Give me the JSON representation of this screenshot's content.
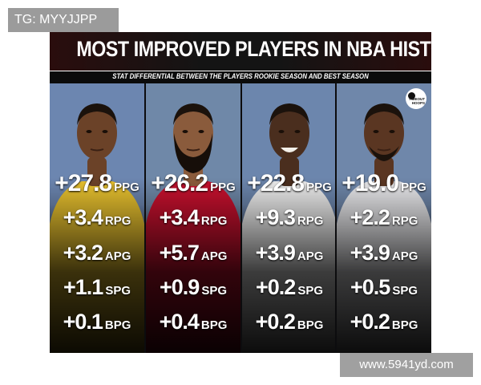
{
  "watermark_top": "TG: MYYJJPP",
  "watermark_bottom": "www.5941yd.com",
  "title": "MOST IMPROVED PLAYERS IN NBA HISTORY",
  "subtitle": "STAT DIFFERENTIAL BETWEEN THE PLAYERS ROOKIE SEASON AND BEST SEASON",
  "logo": {
    "line1": "TIMEOUT",
    "line2": "HOOPS"
  },
  "players": [
    {
      "jersey_color": "#e8c12e",
      "skin": "#6b4228",
      "bg": "#6c86b0",
      "stats": [
        {
          "value": "+27.8",
          "unit": "PPG"
        },
        {
          "value": "+3.4",
          "unit": "RPG"
        },
        {
          "value": "+3.2",
          "unit": "APG"
        },
        {
          "value": "+1.1",
          "unit": "SPG"
        },
        {
          "value": "+0.1",
          "unit": "BPG"
        }
      ]
    },
    {
      "jersey_color": "#c8102e",
      "skin": "#8a5b3c",
      "bg": "#6f88a8",
      "stats": [
        {
          "value": "+26.2",
          "unit": "PPG"
        },
        {
          "value": "+3.4",
          "unit": "RPG"
        },
        {
          "value": "+5.7",
          "unit": "APG"
        },
        {
          "value": "+0.9",
          "unit": "SPG"
        },
        {
          "value": "+0.4",
          "unit": "BPG"
        }
      ]
    },
    {
      "jersey_color": "#ededed",
      "skin": "#4a2e1e",
      "bg": "#6c86ad",
      "stats": [
        {
          "value": "+22.8",
          "unit": "PPG"
        },
        {
          "value": "+9.3",
          "unit": "RPG"
        },
        {
          "value": "+3.9",
          "unit": "APG"
        },
        {
          "value": "+0.2",
          "unit": "SPG"
        },
        {
          "value": "+0.2",
          "unit": "BPG"
        }
      ]
    },
    {
      "jersey_color": "#e9e9ec",
      "skin": "#5a3622",
      "bg": "#6f87aa",
      "stats": [
        {
          "value": "+19.0",
          "unit": "PPG"
        },
        {
          "value": "+2.2",
          "unit": "RPG"
        },
        {
          "value": "+3.9",
          "unit": "APG"
        },
        {
          "value": "+0.5",
          "unit": "SPG"
        },
        {
          "value": "+0.2",
          "unit": "BPG"
        }
      ]
    }
  ]
}
